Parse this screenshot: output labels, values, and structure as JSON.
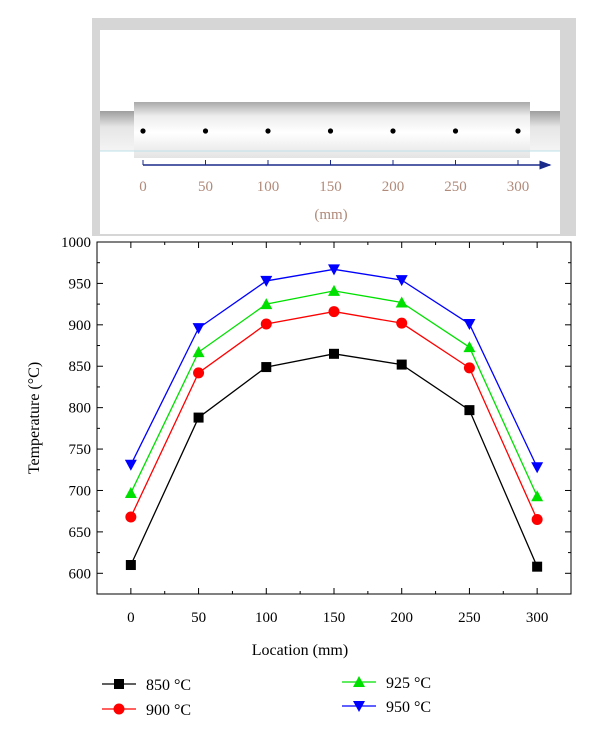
{
  "diagram": {
    "scale_ticks": [
      "0",
      "50",
      "100",
      "150",
      "200",
      "250",
      "300"
    ],
    "unit_label": "(mm)",
    "point_count": 7
  },
  "chart_data": {
    "type": "line",
    "xlabel": "Location (mm)",
    "ylabel": "Temperature (°C)",
    "x": [
      0,
      50,
      100,
      150,
      200,
      250,
      300
    ],
    "xlim": [
      -25,
      325
    ],
    "ylim": [
      575,
      1000
    ],
    "xticks": [
      "0",
      "50",
      "100",
      "150",
      "200",
      "250",
      "300"
    ],
    "yticks": [
      "600",
      "650",
      "700",
      "750",
      "800",
      "850",
      "900",
      "950",
      "1000"
    ],
    "grid": false,
    "legend_position": "bottom",
    "series": [
      {
        "name": "850 °C",
        "values": [
          610,
          788,
          849,
          865,
          852,
          797,
          608
        ],
        "color": "#000000",
        "marker": "square"
      },
      {
        "name": "900 °C",
        "values": [
          668,
          842,
          901,
          916,
          902,
          848,
          665
        ],
        "color": "#ff0000",
        "marker": "circle"
      },
      {
        "name": "925 °C",
        "values": [
          697,
          867,
          925,
          941,
          927,
          873,
          693
        ],
        "color": "#00e000",
        "marker": "triangle-up"
      },
      {
        "name": "950 °C",
        "values": [
          731,
          896,
          953,
          967,
          954,
          901,
          728
        ],
        "color": "#0000ff",
        "marker": "triangle-down"
      }
    ]
  }
}
